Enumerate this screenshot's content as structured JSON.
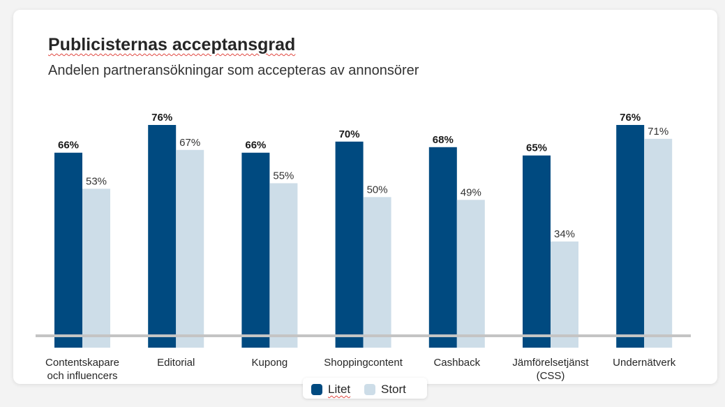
{
  "header": {
    "title": "Publicisternas acceptansgrad",
    "subtitle": "Andelen partneransökningar som accepteras av annonsörer"
  },
  "colors": {
    "Litet": "#004a80",
    "Stort": "#cddde8",
    "baseline": "#c4c4c4"
  },
  "legend": {
    "items": [
      {
        "label": "Litet"
      },
      {
        "label": "Stort"
      }
    ]
  },
  "chart_data": {
    "type": "bar",
    "title": "Publicisternas acceptansgrad",
    "subtitle": "Andelen partneransökningar som accepteras av annonsörer",
    "xlabel": "",
    "ylabel": "",
    "categories": [
      [
        "Contentskapare",
        "och influencers"
      ],
      [
        "Editorial"
      ],
      [
        "Kupong"
      ],
      [
        "Shoppingcontent"
      ],
      [
        "Cashback"
      ],
      [
        "Jämförelsetjänst",
        "(CSS)"
      ],
      [
        "Undernätverk"
      ]
    ],
    "series": [
      {
        "name": "Litet",
        "values": [
          66,
          76,
          66,
          70,
          68,
          65,
          76
        ],
        "labels": [
          "66%",
          "76%",
          "66%",
          "70%",
          "68%",
          "65%",
          "76%"
        ]
      },
      {
        "name": "Stort",
        "values": [
          53,
          67,
          55,
          50,
          49,
          34,
          71
        ],
        "labels": [
          "53%",
          "67%",
          "55%",
          "50%",
          "49%",
          "34%",
          "71%"
        ]
      }
    ],
    "ylim": [
      0,
      100
    ],
    "grid": false,
    "legend_position": "bottom-center"
  }
}
